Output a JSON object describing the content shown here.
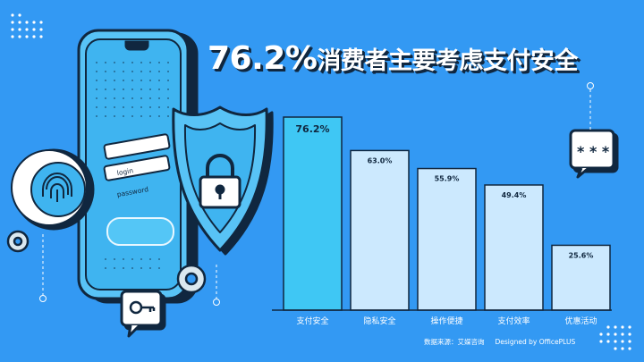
{
  "title_pct": "76.2%",
  "title_rest": "消费者主要考虑支付安全",
  "source_label": "数据来源：艾媒咨询",
  "credit": "Designed by OfficePLUS",
  "login": {
    "login_label": "login",
    "password_label": "password"
  },
  "colors": {
    "background": "#3399f3",
    "highlight_bar": "#3fc7f4",
    "bar": "#cce9fe",
    "outline": "#10273f"
  },
  "chart_data": {
    "type": "bar",
    "categories": [
      "支付安全",
      "隐私安全",
      "操作便捷",
      "支付效率",
      "优惠活动"
    ],
    "values": [
      76.2,
      63.0,
      55.9,
      49.4,
      25.6
    ],
    "value_labels": [
      "76.2%",
      "63.0%",
      "55.9%",
      "49.4%",
      "25.6%"
    ],
    "ylim": [
      0,
      80
    ],
    "highlight_index": 0,
    "grid": false,
    "axis_labels_shown": false
  }
}
